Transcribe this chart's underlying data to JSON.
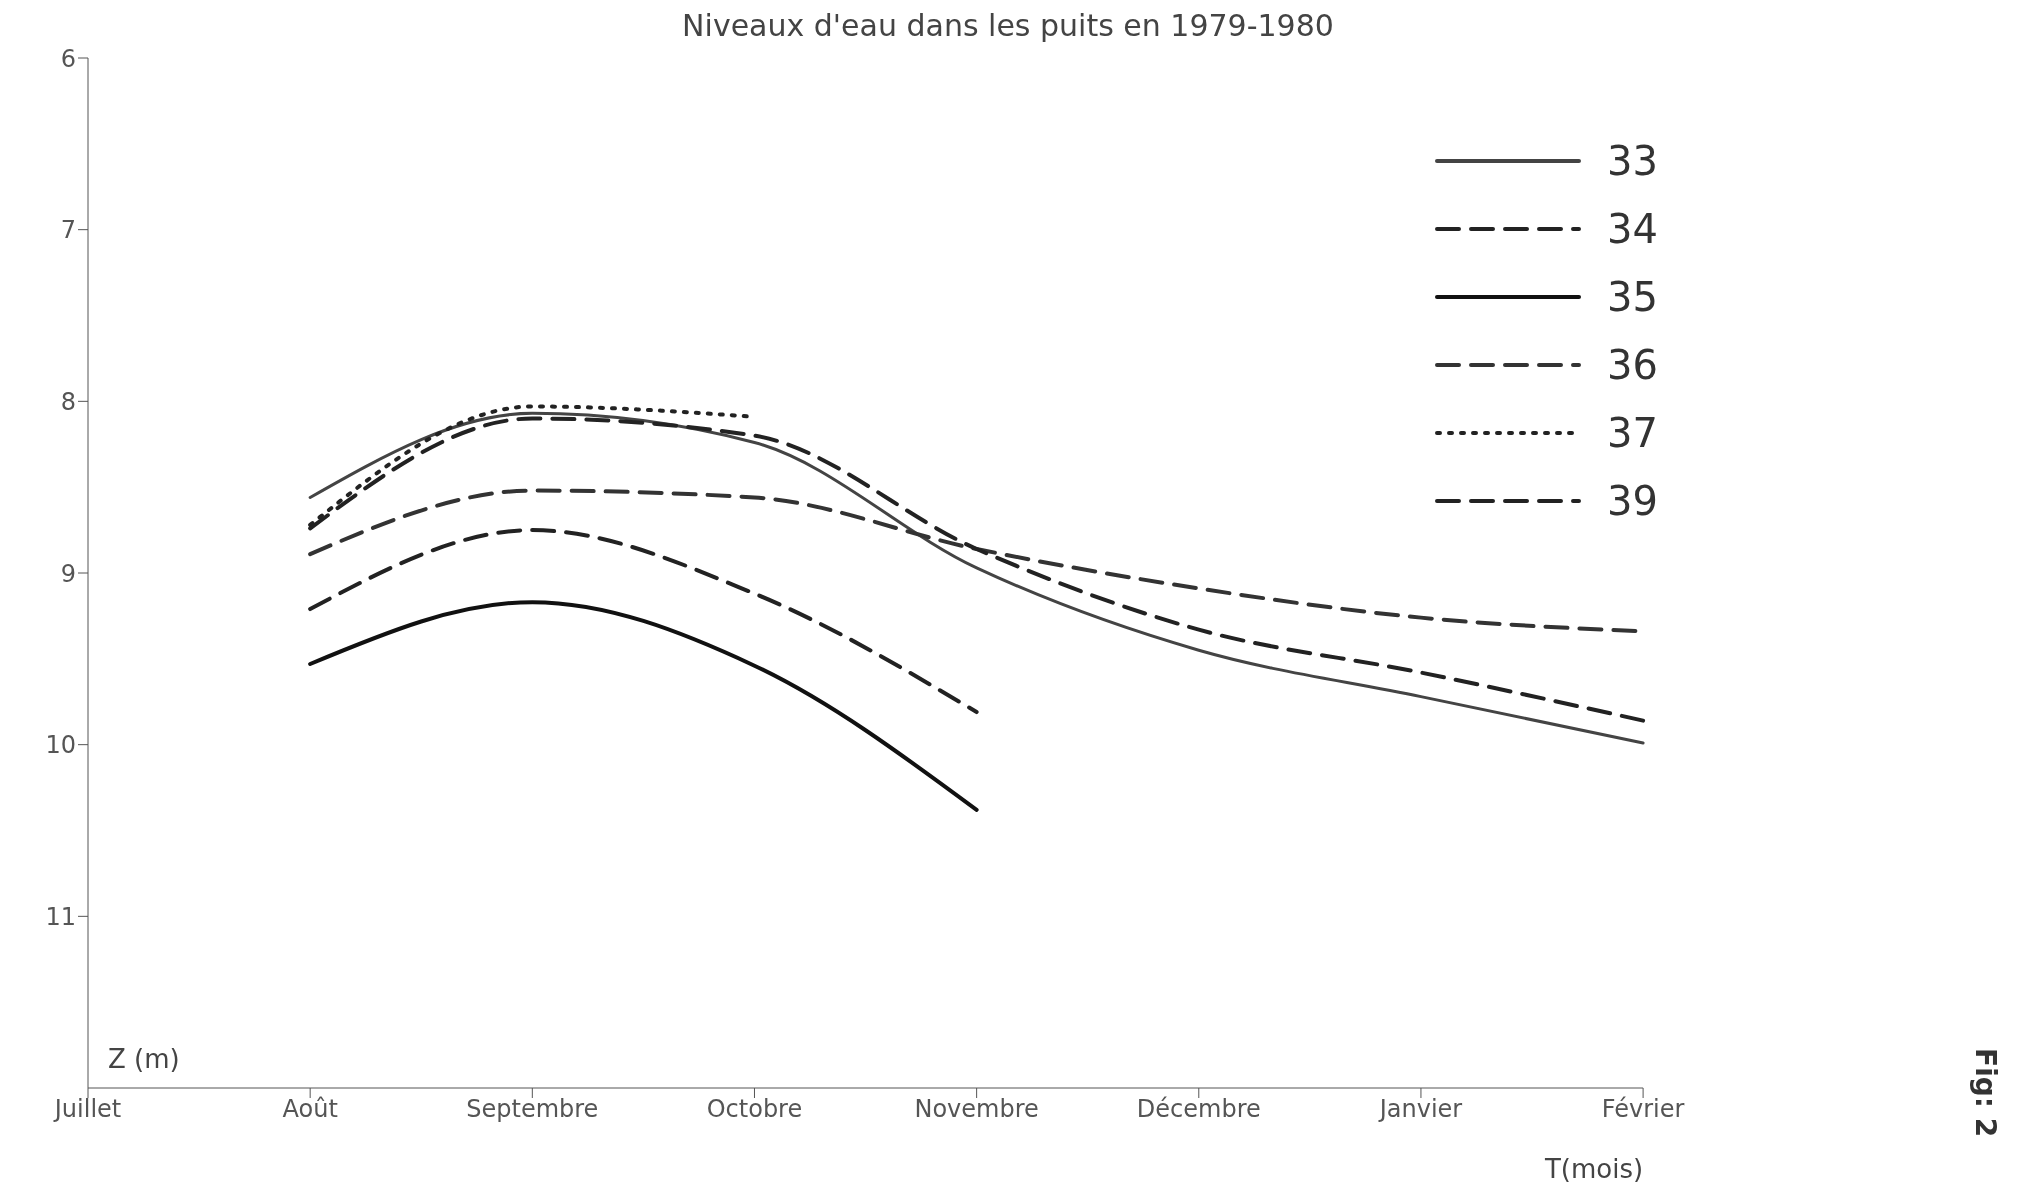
{
  "chart_data": {
    "type": "line",
    "title": "Niveaux d'eau dans les puits en 1979-1980",
    "xlabel": "T(mois)",
    "ylabel": "Z (m)",
    "annotations": [
      "Fig: 2"
    ],
    "categories": [
      "Juillet",
      "Août",
      "Septembre",
      "Octobre",
      "Novembre",
      "Décembre",
      "Janvier",
      "Février"
    ],
    "ylim": [
      12,
      6
    ],
    "yticks": [
      6,
      7,
      8,
      9,
      10,
      11
    ],
    "grid": false,
    "legend": "top right",
    "marker": "none",
    "series": [
      {
        "name": "33",
        "color": "#444444",
        "line_style": "solid",
        "values": [
          null,
          8.56,
          8.07,
          8.24,
          8.97,
          9.45,
          9.72,
          9.99
        ]
      },
      {
        "name": "34",
        "color": "#222222",
        "line_style": "dashed",
        "values": [
          null,
          9.21,
          8.75,
          9.12,
          9.81,
          null,
          null,
          null
        ]
      },
      {
        "name": "35",
        "color": "#111111",
        "line_style": "solid",
        "values": [
          null,
          9.53,
          9.17,
          9.54,
          10.38,
          null,
          null,
          null
        ]
      },
      {
        "name": "36",
        "color": "#333333",
        "line_style": "dashed",
        "values": [
          null,
          8.89,
          8.52,
          8.56,
          8.86,
          9.09,
          9.26,
          9.34
        ]
      },
      {
        "name": "37",
        "color": "#222222",
        "line_style": "dotted",
        "values": [
          null,
          8.72,
          8.03,
          8.09,
          null,
          null,
          null,
          null
        ]
      },
      {
        "name": "39",
        "color": "#222222",
        "line_style": "dashed",
        "values": [
          null,
          8.74,
          8.1,
          8.2,
          8.86,
          9.33,
          9.58,
          9.86
        ]
      }
    ]
  }
}
